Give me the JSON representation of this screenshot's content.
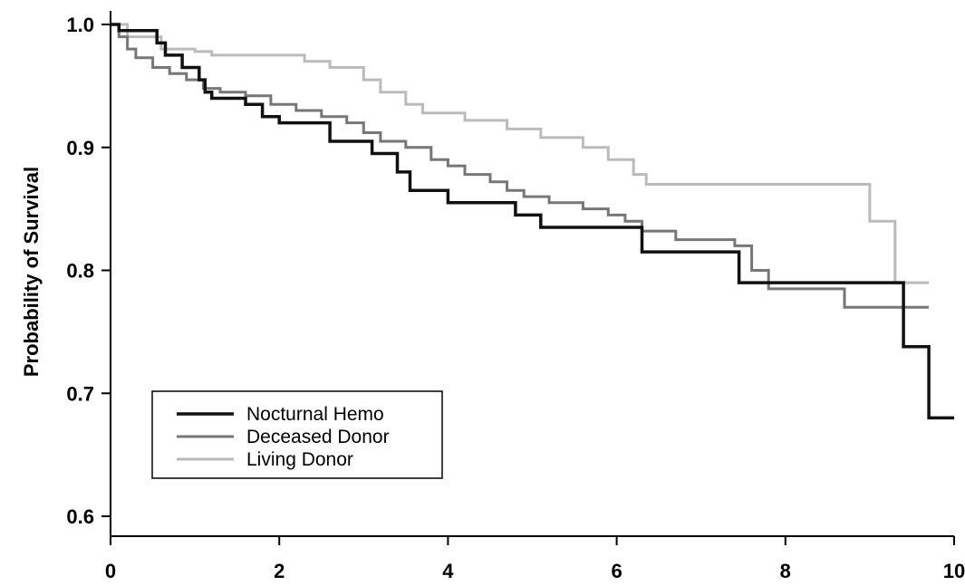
{
  "chart_data": {
    "type": "line",
    "ylabel": "Probability of Survival",
    "xlabel": "",
    "xlim": [
      0,
      10
    ],
    "ylim": [
      0.6,
      1.0
    ],
    "x_ticks": [
      0,
      2,
      4,
      6,
      8,
      10
    ],
    "y_ticks": [
      0.6,
      0.7,
      0.8,
      0.9,
      1.0
    ],
    "x_tick_labels": [
      "0",
      "2",
      "4",
      "6",
      "8",
      "10"
    ],
    "y_tick_labels": [
      "0.6",
      "0.7",
      "0.8",
      "0.9",
      "1.0"
    ],
    "grid": false,
    "legend_position": "bottom-left",
    "step": true,
    "series": [
      {
        "name": "Nocturnal Hemo",
        "color": "#111111",
        "stroke": 3.5,
        "x": [
          0,
          0.1,
          0.55,
          0.65,
          0.85,
          1.05,
          1.12,
          1.2,
          1.6,
          1.8,
          2.0,
          2.6,
          3.1,
          3.4,
          3.55,
          4.0,
          4.8,
          5.1,
          6.3,
          7.45,
          9.4,
          9.7,
          10.0
        ],
        "y": [
          1.0,
          0.995,
          0.985,
          0.975,
          0.965,
          0.955,
          0.945,
          0.94,
          0.935,
          0.925,
          0.92,
          0.905,
          0.895,
          0.88,
          0.865,
          0.855,
          0.845,
          0.835,
          0.815,
          0.79,
          0.738,
          0.68,
          0.68
        ]
      },
      {
        "name": "Deceased Donor",
        "color": "#777777",
        "stroke": 3,
        "x": [
          0,
          0.1,
          0.2,
          0.3,
          0.5,
          0.7,
          0.9,
          1.1,
          1.3,
          1.6,
          1.9,
          2.2,
          2.5,
          2.8,
          3.0,
          3.2,
          3.5,
          3.8,
          4.0,
          4.2,
          4.5,
          4.7,
          4.9,
          5.2,
          5.6,
          5.9,
          6.1,
          6.3,
          6.7,
          7.4,
          7.6,
          7.8,
          8.7,
          9.7
        ],
        "y": [
          1.0,
          0.99,
          0.98,
          0.973,
          0.965,
          0.96,
          0.955,
          0.948,
          0.945,
          0.942,
          0.935,
          0.93,
          0.925,
          0.92,
          0.912,
          0.905,
          0.9,
          0.89,
          0.885,
          0.878,
          0.872,
          0.865,
          0.86,
          0.855,
          0.85,
          0.845,
          0.84,
          0.832,
          0.825,
          0.82,
          0.8,
          0.785,
          0.77,
          0.77
        ]
      },
      {
        "name": "Living Donor",
        "color": "#bbbbbb",
        "stroke": 3,
        "x": [
          0,
          0.2,
          0.6,
          1.0,
          1.2,
          2.3,
          2.6,
          3.0,
          3.2,
          3.5,
          3.7,
          4.2,
          4.7,
          5.1,
          5.6,
          5.9,
          6.2,
          6.35,
          9.0,
          9.3,
          9.7
        ],
        "y": [
          1.0,
          0.99,
          0.98,
          0.978,
          0.975,
          0.97,
          0.965,
          0.955,
          0.945,
          0.935,
          0.928,
          0.922,
          0.915,
          0.908,
          0.9,
          0.89,
          0.878,
          0.87,
          0.84,
          0.79,
          0.79
        ]
      }
    ]
  }
}
